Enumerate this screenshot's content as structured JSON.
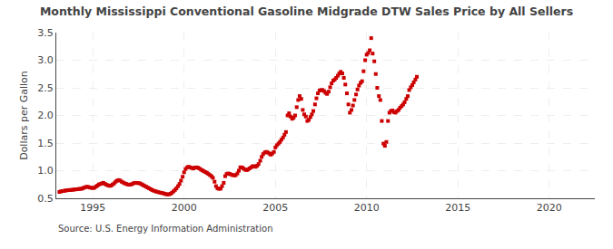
{
  "chart_data": {
    "type": "scatter",
    "title": "Monthly Mississippi Conventional Gasoline Midgrade DTW Sales Price by All Sellers",
    "ylabel": "Dollars per Gallon",
    "annotations": [
      "Source: U.S. Energy Information Administration"
    ],
    "color": "#cc0000",
    "marker": "square",
    "grid": true,
    "xlim": [
      1993.0,
      2022.5
    ],
    "ylim": [
      0.5,
      3.5
    ],
    "xticks": [
      1995,
      2000,
      2005,
      2010,
      2015,
      2020
    ],
    "yticks": [
      0.5,
      {
        "value": 1.0,
        "label": "1.0"
      },
      1.5,
      {
        "value": 2.0,
        "label": "2.0"
      },
      2.5,
      {
        "value": 3.0,
        "label": "3.0"
      },
      3.5
    ],
    "x": [
      1993.17,
      1993.25,
      1993.33,
      1993.42,
      1993.5,
      1993.58,
      1993.67,
      1993.75,
      1993.83,
      1993.92,
      1994.0,
      1994.08,
      1994.17,
      1994.25,
      1994.33,
      1994.42,
      1994.5,
      1994.58,
      1994.67,
      1994.75,
      1994.83,
      1994.92,
      1995.0,
      1995.08,
      1995.17,
      1995.25,
      1995.33,
      1995.42,
      1995.5,
      1995.58,
      1995.67,
      1995.75,
      1995.83,
      1995.92,
      1996.0,
      1996.08,
      1996.17,
      1996.25,
      1996.33,
      1996.42,
      1996.5,
      1996.58,
      1996.67,
      1996.75,
      1996.83,
      1996.92,
      1997.0,
      1997.08,
      1997.17,
      1997.25,
      1997.33,
      1997.42,
      1997.5,
      1997.58,
      1997.67,
      1997.75,
      1997.83,
      1997.92,
      1998.0,
      1998.08,
      1998.17,
      1998.25,
      1998.33,
      1998.42,
      1998.5,
      1998.58,
      1998.67,
      1998.75,
      1998.83,
      1998.92,
      1999.0,
      1999.08,
      1999.17,
      1999.25,
      1999.33,
      1999.42,
      1999.5,
      1999.58,
      1999.67,
      1999.75,
      1999.83,
      1999.92,
      2000.0,
      2000.08,
      2000.17,
      2000.25,
      2000.33,
      2000.42,
      2000.5,
      2000.58,
      2000.67,
      2000.75,
      2000.83,
      2000.92,
      2001.0,
      2001.08,
      2001.17,
      2001.25,
      2001.33,
      2001.42,
      2001.5,
      2001.58,
      2001.67,
      2001.75,
      2001.83,
      2001.92,
      2002.0,
      2002.08,
      2002.17,
      2002.25,
      2002.33,
      2002.42,
      2002.5,
      2002.58,
      2002.67,
      2002.75,
      2002.83,
      2002.92,
      2003.0,
      2003.08,
      2003.17,
      2003.25,
      2003.33,
      2003.42,
      2003.5,
      2003.58,
      2003.67,
      2003.75,
      2003.83,
      2003.92,
      2004.0,
      2004.08,
      2004.17,
      2004.25,
      2004.33,
      2004.42,
      2004.5,
      2004.58,
      2004.67,
      2004.75,
      2004.83,
      2004.92,
      2005.0,
      2005.08,
      2005.17,
      2005.25,
      2005.33,
      2005.42,
      2005.5,
      2005.58,
      2005.67,
      2005.75,
      2005.83,
      2005.92,
      2006.0,
      2006.08,
      2006.17,
      2006.25,
      2006.33,
      2006.42,
      2006.5,
      2006.58,
      2006.67,
      2006.75,
      2006.83,
      2006.92,
      2007.0,
      2007.08,
      2007.17,
      2007.25,
      2007.33,
      2007.42,
      2007.5,
      2007.58,
      2007.67,
      2007.75,
      2007.83,
      2007.92,
      2008.0,
      2008.08,
      2008.17,
      2008.25,
      2008.33,
      2008.42,
      2008.5,
      2008.58,
      2008.67,
      2008.75,
      2008.83,
      2008.92,
      2009.0,
      2009.08,
      2009.17,
      2009.25,
      2009.33,
      2009.42,
      2009.5,
      2009.58,
      2009.67,
      2009.75,
      2009.83,
      2009.92,
      2010.0,
      2010.08,
      2010.17,
      2010.25,
      2010.33,
      2010.42,
      2010.5,
      2010.58,
      2010.67,
      2010.75,
      2010.83,
      2010.92,
      2011.0,
      2011.08,
      2011.17,
      2011.25,
      2011.33,
      2011.42,
      2011.5,
      2011.58,
      2011.67,
      2011.75,
      2011.83,
      2011.92,
      2012.0,
      2012.08,
      2012.17,
      2012.25,
      2012.33,
      2012.42,
      2012.5,
      2012.58,
      2012.67,
      2012.75
    ],
    "values": [
      0.615,
      0.625,
      0.63,
      0.635,
      0.64,
      0.645,
      0.648,
      0.65,
      0.652,
      0.655,
      0.66,
      0.662,
      0.665,
      0.67,
      0.672,
      0.675,
      0.69,
      0.7,
      0.71,
      0.705,
      0.695,
      0.69,
      0.685,
      0.69,
      0.71,
      0.73,
      0.75,
      0.76,
      0.77,
      0.78,
      0.76,
      0.745,
      0.735,
      0.725,
      0.73,
      0.75,
      0.77,
      0.8,
      0.82,
      0.83,
      0.82,
      0.8,
      0.785,
      0.77,
      0.76,
      0.75,
      0.745,
      0.75,
      0.76,
      0.775,
      0.78,
      0.778,
      0.775,
      0.77,
      0.755,
      0.74,
      0.725,
      0.71,
      0.695,
      0.68,
      0.665,
      0.65,
      0.638,
      0.628,
      0.62,
      0.612,
      0.605,
      0.598,
      0.592,
      0.585,
      0.575,
      0.57,
      0.572,
      0.58,
      0.6,
      0.625,
      0.65,
      0.68,
      0.72,
      0.76,
      0.82,
      0.89,
      0.97,
      1.03,
      1.06,
      1.07,
      1.06,
      1.05,
      1.04,
      1.055,
      1.06,
      1.055,
      1.04,
      1.02,
      1.005,
      0.99,
      0.975,
      0.96,
      0.94,
      0.92,
      0.9,
      0.87,
      0.8,
      0.72,
      0.68,
      0.67,
      0.675,
      0.72,
      0.78,
      0.9,
      0.94,
      0.95,
      0.94,
      0.93,
      0.92,
      0.915,
      0.92,
      0.95,
      1.0,
      1.06,
      1.06,
      1.04,
      1.02,
      1.01,
      1.02,
      1.04,
      1.06,
      1.08,
      1.08,
      1.07,
      1.09,
      1.12,
      1.18,
      1.25,
      1.3,
      1.33,
      1.34,
      1.33,
      1.31,
      1.29,
      1.31,
      1.34,
      1.42,
      1.46,
      1.49,
      1.52,
      1.56,
      1.6,
      1.65,
      1.7,
      2.0,
      2.04,
      1.98,
      1.94,
      1.96,
      2.0,
      2.15,
      2.28,
      2.35,
      2.3,
      2.1,
      2.02,
      1.98,
      1.9,
      1.92,
      1.97,
      2.02,
      2.08,
      2.2,
      2.31,
      2.4,
      2.45,
      2.46,
      2.46,
      2.44,
      2.41,
      2.39,
      2.43,
      2.51,
      2.58,
      2.63,
      2.65,
      2.68,
      2.72,
      2.76,
      2.79,
      2.76,
      2.68,
      2.56,
      2.4,
      2.2,
      2.05,
      2.1,
      2.18,
      2.28,
      2.38,
      2.47,
      2.54,
      2.59,
      2.62,
      2.8,
      3.0,
      3.1,
      3.13,
      3.18,
      3.4,
      3.12,
      2.98,
      2.75,
      2.5,
      2.35,
      2.28,
      1.9,
      1.49,
      1.45,
      1.52,
      1.9,
      2.05,
      2.08,
      2.09,
      2.06,
      2.05,
      2.08,
      2.1,
      2.14,
      2.17,
      2.2,
      2.24,
      2.3,
      2.35,
      2.46,
      2.51,
      2.55,
      2.6,
      2.65,
      2.7
    ]
  }
}
